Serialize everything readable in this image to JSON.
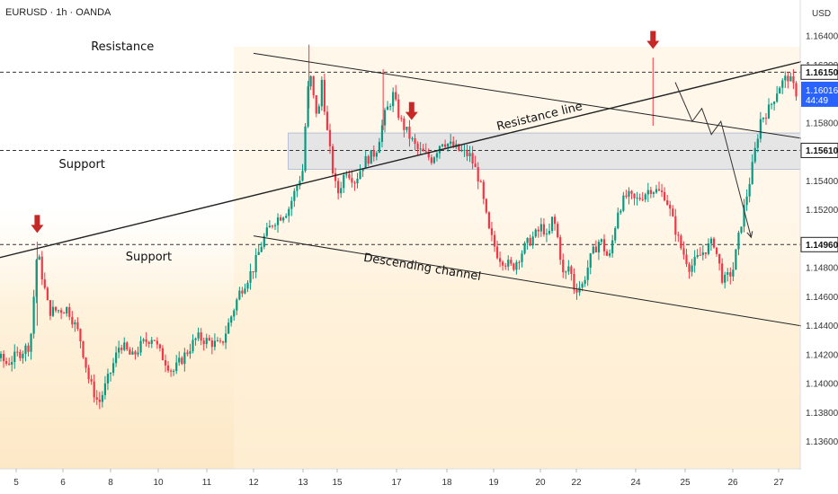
{
  "header": {
    "symbol": "EURUSD · 1h · OANDA",
    "currency": "USD"
  },
  "colors": {
    "up": "#089981",
    "down": "#f23645",
    "arrow": "#c62828",
    "current": "#2962ff",
    "zone": "#b8c2e0"
  },
  "chart_data": {
    "type": "candlestick",
    "symbol": "EURUSD",
    "timeframe": "1h",
    "source": "OANDA",
    "ylim": [
      1.134,
      1.166
    ],
    "yticks": [
      "1.16400",
      "1.16200",
      "1.15800",
      "1.15400",
      "1.15200",
      "1.14800",
      "1.14600",
      "1.14400",
      "1.14200",
      "1.14000",
      "1.13800",
      "1.13600"
    ],
    "x_labels": [
      "5",
      "6",
      "8",
      "10",
      "11",
      "12",
      "13",
      "15",
      "17",
      "18",
      "19",
      "20",
      "22",
      "24",
      "25",
      "26",
      "27"
    ],
    "x_tick_days": [
      5,
      6,
      8,
      10,
      11,
      12,
      13,
      15,
      17,
      18,
      19,
      20,
      22,
      24,
      25,
      26,
      27
    ],
    "levels": [
      {
        "label": "1.16150",
        "value": 1.1615
      },
      {
        "label": "1.15610",
        "value": 1.1561
      },
      {
        "label": "1.14960",
        "value": 1.1496
      }
    ],
    "current_price": {
      "label": "1.16016",
      "value": 1.16016,
      "countdown": "44:49"
    },
    "support_zone": {
      "from_day": 12.7,
      "to_day": 29,
      "low": 1.1548,
      "high": 1.1573
    },
    "lines": [
      {
        "name": "Resistance line",
        "p1": {
          "day": 3.5,
          "price": 1.1478
        },
        "p2": {
          "day": 29.4,
          "price": 1.1637
        }
      },
      {
        "name": "Descending channel upper",
        "p1": {
          "day": 12.0,
          "price": 1.1628
        },
        "p2": {
          "day": 29.4,
          "price": 1.156
        }
      },
      {
        "name": "Descending channel lower",
        "p1": {
          "day": 12.0,
          "price": 1.1502
        },
        "p2": {
          "day": 29.4,
          "price": 1.143
        }
      }
    ],
    "projection": [
      {
        "day": 24.8,
        "price": 1.1608
      },
      {
        "day": 25.15,
        "price": 1.1581
      },
      {
        "day": 25.35,
        "price": 1.159
      },
      {
        "day": 25.55,
        "price": 1.1572
      },
      {
        "day": 25.75,
        "price": 1.1581
      },
      {
        "day": 26.4,
        "price": 1.1501
      }
    ],
    "arrows": [
      {
        "day": 5.45,
        "price": 1.1504
      },
      {
        "day": 17.3,
        "price": 1.1582
      },
      {
        "day": 24.35,
        "price": 1.1631
      }
    ],
    "annotations": [
      {
        "text": "Resistance",
        "day": 8.5,
        "price": 1.163,
        "rotate": false
      },
      {
        "text": "Support",
        "day": 6.8,
        "price": 1.1549,
        "rotate": false
      },
      {
        "text": "Support",
        "day": 9.6,
        "price": 1.1485,
        "rotate": false
      },
      {
        "text": "Resistance line",
        "day": 20.0,
        "price": 1.1582,
        "rotate": true,
        "slope_line": 0
      },
      {
        "text": "Descending channel",
        "day": 17.5,
        "price": 1.1478,
        "rotate": true,
        "slope_line": 2
      }
    ],
    "path": [
      [
        3.5,
        1.1423
      ],
      [
        4.2,
        1.1428
      ],
      [
        4.8,
        1.1414
      ],
      [
        5.3,
        1.1427
      ],
      [
        5.45,
        1.1492
      ],
      [
        5.7,
        1.145
      ],
      [
        6.2,
        1.1452
      ],
      [
        6.7,
        1.1433
      ],
      [
        7.1,
        1.1402
      ],
      [
        7.5,
        1.1386
      ],
      [
        8.0,
        1.1408
      ],
      [
        8.4,
        1.1428
      ],
      [
        8.9,
        1.1418
      ],
      [
        9.3,
        1.1427
      ],
      [
        9.8,
        1.1433
      ],
      [
        10.3,
        1.1408
      ],
      [
        10.8,
        1.1432
      ],
      [
        11.3,
        1.1426
      ],
      [
        11.7,
        1.1463
      ],
      [
        12.0,
        1.148
      ],
      [
        12.2,
        1.15
      ],
      [
        12.4,
        1.1512
      ],
      [
        12.7,
        1.152
      ],
      [
        13.0,
        1.1548
      ],
      [
        13.2,
        1.1592
      ],
      [
        13.4,
        1.1615
      ],
      [
        13.7,
        1.159
      ],
      [
        13.9,
        1.1585
      ],
      [
        14.1,
        1.161
      ],
      [
        14.4,
        1.1575
      ],
      [
        14.7,
        1.155
      ],
      [
        15.0,
        1.153
      ],
      [
        15.3,
        1.1548
      ],
      [
        15.6,
        1.154
      ],
      [
        15.9,
        1.1553
      ],
      [
        16.3,
        1.156
      ],
      [
        16.6,
        1.1585
      ],
      [
        16.9,
        1.16
      ],
      [
        17.1,
        1.158
      ],
      [
        17.4,
        1.1562
      ],
      [
        17.7,
        1.1555
      ],
      [
        17.9,
        1.1568
      ],
      [
        18.2,
        1.1562
      ],
      [
        18.5,
        1.1557
      ],
      [
        18.7,
        1.154
      ],
      [
        18.9,
        1.1505
      ],
      [
        19.1,
        1.1488
      ],
      [
        19.4,
        1.148
      ],
      [
        19.7,
        1.1496
      ],
      [
        20.1,
        1.151
      ],
      [
        20.4,
        1.1498
      ],
      [
        20.7,
        1.1516
      ],
      [
        21.0,
        1.1498
      ],
      [
        21.3,
        1.1472
      ],
      [
        21.6,
        1.1482
      ],
      [
        21.9,
        1.1465
      ],
      [
        22.2,
        1.1468
      ],
      [
        22.5,
        1.1488
      ],
      [
        22.8,
        1.15
      ],
      [
        23.1,
        1.1485
      ],
      [
        23.4,
        1.152
      ],
      [
        23.7,
        1.153
      ],
      [
        24.0,
        1.1526
      ],
      [
        24.3,
        1.1535
      ],
      [
        24.6,
        1.153
      ],
      [
        24.9,
        1.1495
      ],
      [
        25.1,
        1.148
      ],
      [
        25.4,
        1.1492
      ],
      [
        25.6,
        1.1498
      ],
      [
        25.8,
        1.147
      ],
      [
        26.0,
        1.1478
      ],
      [
        26.2,
        1.1514
      ],
      [
        26.4,
        1.1545
      ],
      [
        26.6,
        1.1582
      ],
      [
        26.8,
        1.159
      ],
      [
        27.0,
        1.1605
      ],
      [
        27.2,
        1.1612
      ],
      [
        27.4,
        1.16
      ]
    ]
  }
}
